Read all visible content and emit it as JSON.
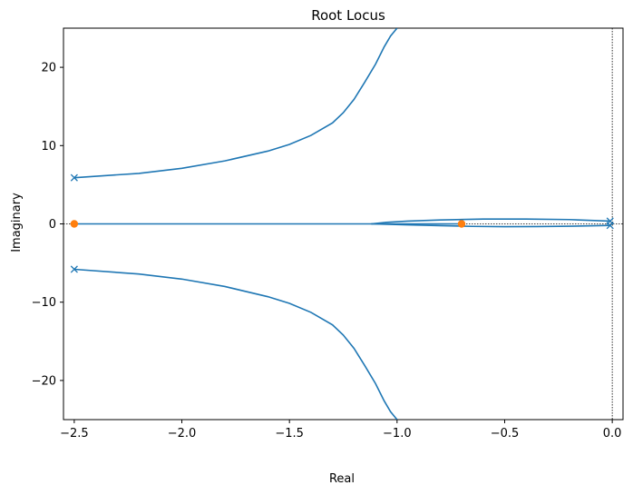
{
  "chart_data": {
    "type": "line",
    "title": "Root Locus",
    "xlabel": "Real",
    "ylabel": "Imaginary",
    "xlim": [
      -2.55,
      0.05
    ],
    "ylim": [
      -25,
      25
    ],
    "x_ticks": [
      -2.5,
      -2.0,
      -1.5,
      -1.0,
      -0.5,
      0.0
    ],
    "x_tick_labels": [
      "−2.5",
      "−2.0",
      "−1.5",
      "−1.0",
      "−0.5",
      "0.0"
    ],
    "y_ticks": [
      -20,
      -10,
      0,
      10,
      20
    ],
    "y_tick_labels": [
      "−20",
      "−10",
      "0",
      "10",
      "20"
    ],
    "grid": false,
    "line_color": "#1f77b4",
    "zero_color": "#ff7f0e",
    "reference_lines": {
      "x": 0,
      "y": 0,
      "style": "dotted",
      "color": "#000000"
    },
    "poles": [
      {
        "re": -2.5,
        "im": 5.9
      },
      {
        "re": -2.5,
        "im": -5.8
      },
      {
        "re": -0.01,
        "im": 0.35
      },
      {
        "re": -0.01,
        "im": -0.2
      }
    ],
    "zeros": [
      {
        "re": -2.5,
        "im": 0
      },
      {
        "re": -0.7,
        "im": 0
      }
    ],
    "branches": [
      {
        "points": [
          [
            -2.5,
            5.9
          ],
          [
            -2.2,
            6.45
          ],
          [
            -2.0,
            7.1
          ],
          [
            -1.8,
            8.05
          ],
          [
            -1.6,
            9.3
          ],
          [
            -1.5,
            10.15
          ],
          [
            -1.4,
            11.3
          ],
          [
            -1.3,
            12.9
          ],
          [
            -1.25,
            14.2
          ],
          [
            -1.2,
            15.9
          ],
          [
            -1.15,
            18.1
          ],
          [
            -1.1,
            20.4
          ],
          [
            -1.06,
            22.6
          ],
          [
            -1.03,
            24.0
          ],
          [
            -1.0,
            25.0
          ]
        ]
      },
      {
        "points": [
          [
            -2.5,
            -5.8
          ],
          [
            -2.2,
            -6.4
          ],
          [
            -2.0,
            -7.05
          ],
          [
            -1.8,
            -8.0
          ],
          [
            -1.6,
            -9.3
          ],
          [
            -1.5,
            -10.15
          ],
          [
            -1.4,
            -11.3
          ],
          [
            -1.3,
            -12.9
          ],
          [
            -1.25,
            -14.2
          ],
          [
            -1.2,
            -15.9
          ],
          [
            -1.15,
            -18.1
          ],
          [
            -1.1,
            -20.4
          ],
          [
            -1.06,
            -22.6
          ],
          [
            -1.03,
            -24.0
          ],
          [
            -1.0,
            -25.0
          ]
        ]
      },
      {
        "points": [
          [
            -0.01,
            0.35
          ],
          [
            -0.2,
            0.55
          ],
          [
            -0.4,
            0.62
          ],
          [
            -0.6,
            0.62
          ],
          [
            -0.8,
            0.5
          ],
          [
            -0.95,
            0.35
          ],
          [
            -1.05,
            0.2
          ],
          [
            -1.12,
            0.0
          ]
        ]
      },
      {
        "points": [
          [
            -0.01,
            -0.2
          ],
          [
            -0.2,
            -0.3
          ],
          [
            -0.35,
            -0.34
          ],
          [
            -0.5,
            -0.35
          ],
          [
            -0.65,
            -0.32
          ],
          [
            -0.8,
            -0.22
          ],
          [
            -0.95,
            -0.12
          ],
          [
            -1.12,
            0.0
          ]
        ]
      },
      {
        "points": [
          [
            -1.12,
            0.0
          ],
          [
            -0.7,
            0.0
          ]
        ]
      },
      {
        "points": [
          [
            -1.12,
            0.0
          ],
          [
            -2.5,
            0.0
          ]
        ]
      }
    ]
  }
}
